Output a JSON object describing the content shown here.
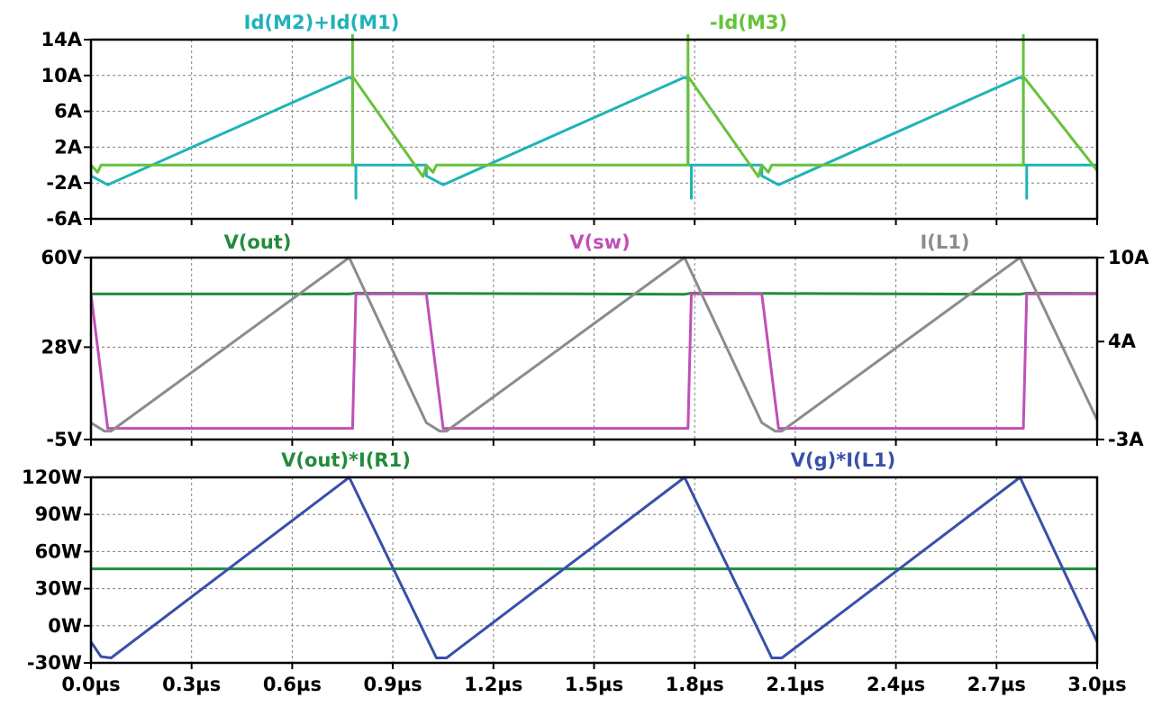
{
  "chart_data": [
    {
      "type": "line",
      "x_unit": "µs",
      "xlim": [
        0,
        3.0
      ],
      "ylim": [
        -6,
        14
      ],
      "yticks": [
        "14A",
        "10A",
        "6A",
        "2A",
        "-2A",
        "-6A"
      ],
      "ytick_values": [
        14,
        10,
        6,
        2,
        -2,
        -6
      ],
      "grid": true,
      "series": [
        {
          "name": "Id(M2)+Id(M1)",
          "color": "#1fb3b8",
          "points": [
            [
              0.0,
              0.0
            ],
            [
              0.0,
              -1.2
            ],
            [
              0.05,
              -2.2
            ],
            [
              0.77,
              9.8
            ],
            [
              0.78,
              9.6
            ],
            [
              0.78,
              0.0
            ],
            [
              0.79,
              0.0
            ],
            [
              0.79,
              -3.7
            ],
            [
              0.79,
              0.0
            ],
            [
              0.8,
              0.0
            ],
            [
              1.0,
              0.0
            ],
            [
              1.0,
              -1.2
            ],
            [
              1.05,
              -2.2
            ],
            [
              1.77,
              9.8
            ],
            [
              1.78,
              9.6
            ],
            [
              1.78,
              0.0
            ],
            [
              1.79,
              0.0
            ],
            [
              1.79,
              -3.7
            ],
            [
              1.79,
              0.0
            ],
            [
              1.8,
              0.0
            ],
            [
              2.0,
              0.0
            ],
            [
              2.0,
              -1.2
            ],
            [
              2.05,
              -2.2
            ],
            [
              2.77,
              9.8
            ],
            [
              2.78,
              9.6
            ],
            [
              2.78,
              0.0
            ],
            [
              2.79,
              0.0
            ],
            [
              2.79,
              -3.7
            ],
            [
              2.79,
              0.0
            ],
            [
              3.0,
              0.0
            ]
          ]
        },
        {
          "name": "-Id(M3)",
          "color": "#66c23a",
          "points": [
            [
              0.0,
              0.0
            ],
            [
              0.02,
              -0.8
            ],
            [
              0.03,
              0.0
            ],
            [
              0.77,
              0.0
            ],
            [
              0.78,
              0.0
            ],
            [
              0.78,
              14.5
            ],
            [
              0.78,
              9.9
            ],
            [
              0.99,
              -1.3
            ],
            [
              1.0,
              0.0
            ],
            [
              1.02,
              -0.8
            ],
            [
              1.03,
              0.0
            ],
            [
              1.77,
              0.0
            ],
            [
              1.78,
              0.0
            ],
            [
              1.78,
              14.5
            ],
            [
              1.78,
              9.9
            ],
            [
              1.99,
              -1.3
            ],
            [
              2.0,
              0.0
            ],
            [
              2.02,
              -0.8
            ],
            [
              2.03,
              0.0
            ],
            [
              2.77,
              0.0
            ],
            [
              2.78,
              0.0
            ],
            [
              2.78,
              14.5
            ],
            [
              2.78,
              9.9
            ],
            [
              3.0,
              -0.6
            ]
          ]
        }
      ]
    },
    {
      "type": "line",
      "x_unit": "µs",
      "xlim": [
        0,
        3.0
      ],
      "ylim": [
        -5,
        60
      ],
      "yticks": [
        "60V",
        "28V",
        "-5V"
      ],
      "ytick_values": [
        60,
        28,
        -5
      ],
      "y2lim": [
        -3,
        10
      ],
      "y2ticks": [
        "10A",
        "4A",
        "-3A"
      ],
      "y2tick_values": [
        10,
        4,
        -3
      ],
      "grid": true,
      "series": [
        {
          "name": "V(out)",
          "color": "#228b3b",
          "axis": "left",
          "points": [
            [
              0.0,
              47.0
            ],
            [
              0.77,
              47.0
            ],
            [
              0.79,
              47.3
            ],
            [
              1.0,
              47.2
            ],
            [
              1.77,
              46.9
            ],
            [
              1.79,
              47.3
            ],
            [
              2.0,
              47.2
            ],
            [
              2.77,
              46.9
            ],
            [
              2.79,
              47.3
            ],
            [
              3.0,
              47.2
            ]
          ]
        },
        {
          "name": "V(sw)",
          "color": "#c050b8",
          "axis": "left",
          "points": [
            [
              0.0,
              47.0
            ],
            [
              0.05,
              -1.0
            ],
            [
              0.78,
              -1.0
            ],
            [
              0.79,
              47.0
            ],
            [
              1.0,
              47.0
            ],
            [
              1.05,
              -1.0
            ],
            [
              1.78,
              -1.0
            ],
            [
              1.79,
              47.0
            ],
            [
              2.0,
              47.0
            ],
            [
              2.05,
              -1.0
            ],
            [
              2.78,
              -1.0
            ],
            [
              2.79,
              47.0
            ],
            [
              3.0,
              47.0
            ]
          ]
        },
        {
          "name": "I(L1)",
          "color": "#8c8c8c",
          "axis": "right",
          "points": [
            [
              0.0,
              -1.8
            ],
            [
              0.04,
              -2.4
            ],
            [
              0.06,
              -2.4
            ],
            [
              0.77,
              10.0
            ],
            [
              1.0,
              -1.8
            ],
            [
              1.04,
              -2.4
            ],
            [
              1.06,
              -2.4
            ],
            [
              1.77,
              10.0
            ],
            [
              2.0,
              -1.8
            ],
            [
              2.04,
              -2.4
            ],
            [
              2.06,
              -2.4
            ],
            [
              2.77,
              10.0
            ],
            [
              3.0,
              -1.6
            ]
          ]
        }
      ]
    },
    {
      "type": "line",
      "x_unit": "µs",
      "xlim": [
        0,
        3.0
      ],
      "ylim": [
        -30,
        120
      ],
      "yticks": [
        "120W",
        "90W",
        "60W",
        "30W",
        "0W",
        "-30W"
      ],
      "ytick_values": [
        120,
        90,
        60,
        30,
        0,
        -30
      ],
      "grid": true,
      "series": [
        {
          "name": "V(out)*I(R1)",
          "color": "#228b3b",
          "points": [
            [
              0.0,
              46.0
            ],
            [
              3.0,
              46.0
            ]
          ]
        },
        {
          "name": "V(g)*I(L1)",
          "color": "#3a4fa8",
          "points": [
            [
              0.0,
              -13.0
            ],
            [
              0.03,
              -25.0
            ],
            [
              0.06,
              -26.0
            ],
            [
              0.77,
              120.0
            ],
            [
              1.03,
              -26.0
            ],
            [
              1.06,
              -26.0
            ],
            [
              1.77,
              120.0
            ],
            [
              2.03,
              -26.0
            ],
            [
              2.06,
              -26.0
            ],
            [
              2.77,
              120.0
            ],
            [
              3.0,
              -13.0
            ]
          ]
        }
      ]
    }
  ],
  "x_axis": {
    "ticks": [
      "0.0µs",
      "0.3µs",
      "0.6µs",
      "0.9µs",
      "1.2µs",
      "1.5µs",
      "1.8µs",
      "2.1µs",
      "2.4µs",
      "2.7µs",
      "3.0µs"
    ],
    "values": [
      0.0,
      0.3,
      0.6,
      0.9,
      1.2,
      1.5,
      1.8,
      2.1,
      2.4,
      2.7,
      3.0
    ]
  }
}
